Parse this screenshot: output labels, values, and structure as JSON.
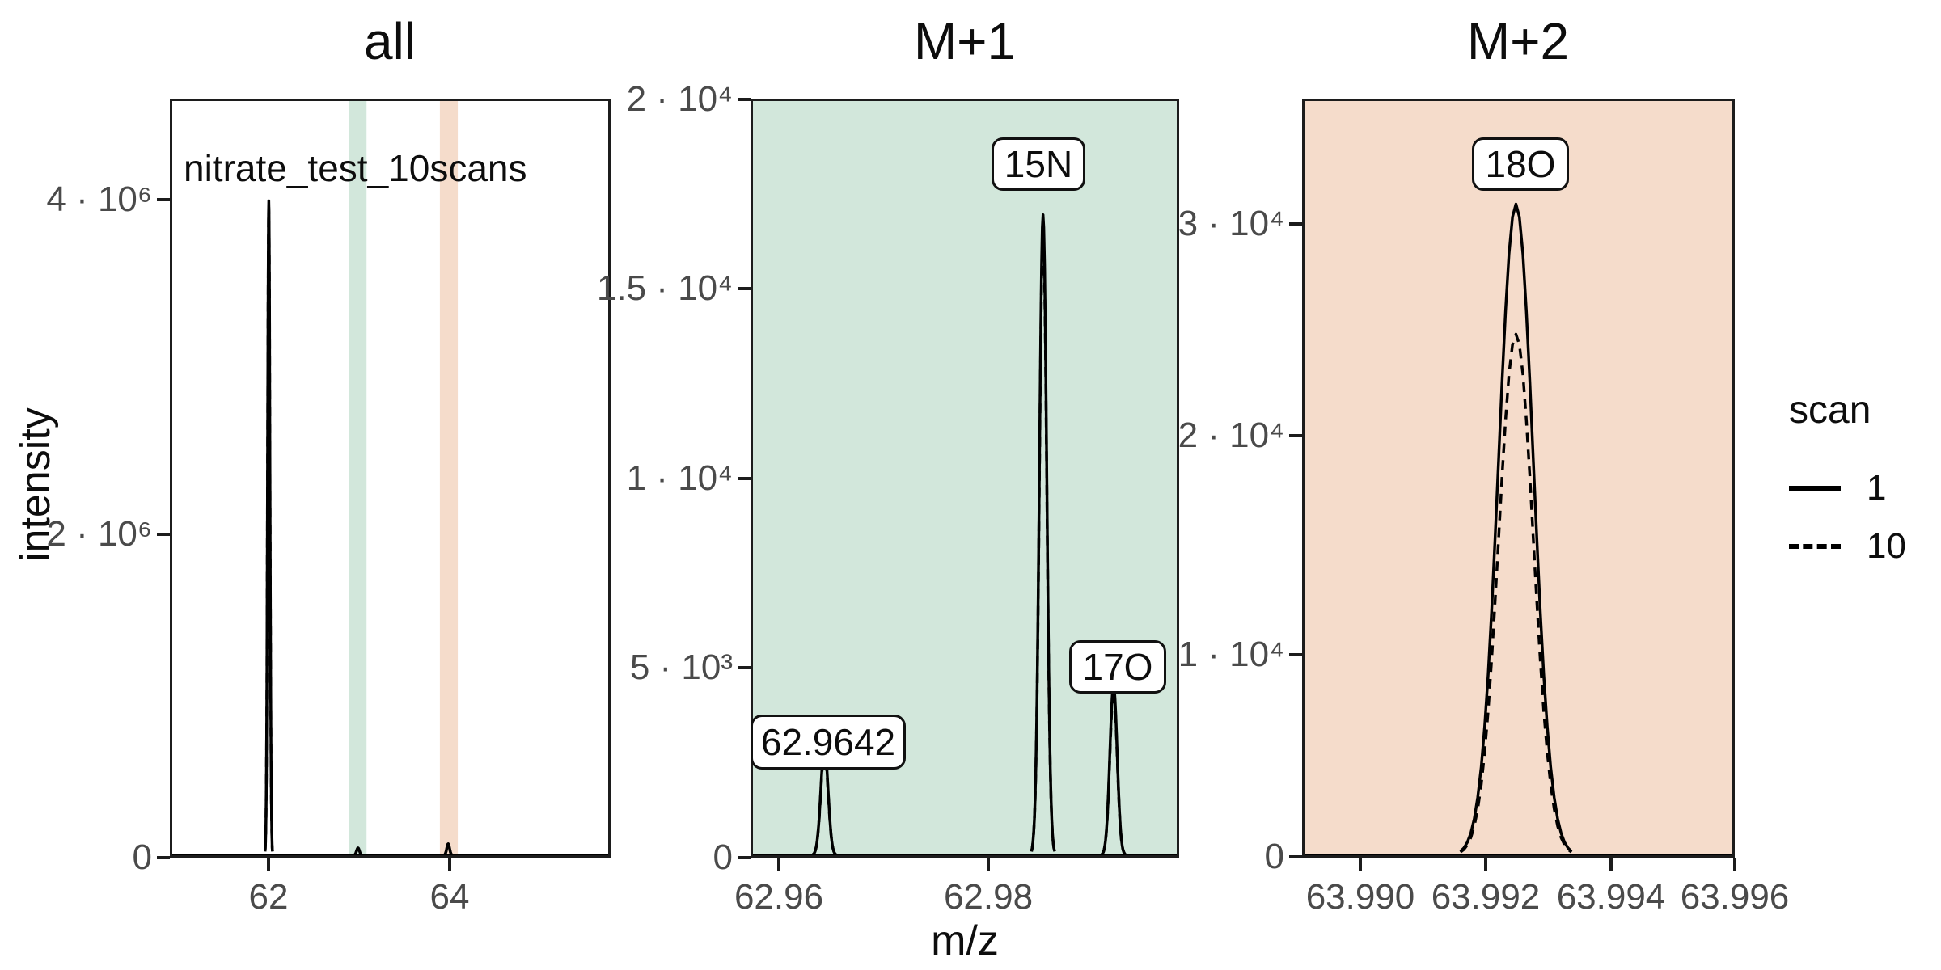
{
  "labels": {
    "x_axis": "m/z",
    "y_axis": "intensity"
  },
  "legend": {
    "title": "scan",
    "entries": [
      {
        "label": "1",
        "line_style": "solid"
      },
      {
        "label": "10",
        "line_style": "dashed"
      }
    ]
  },
  "chart_data": [
    {
      "type": "line",
      "title": "all",
      "annotation": "nitrate_test_10scans",
      "panel_fill": "#ffffff",
      "xlabel": "m/z",
      "ylabel": "intensity",
      "xlim": [
        60.91,
        65.78
      ],
      "ylim": [
        0,
        4610000
      ],
      "xticks": [
        {
          "value": 62,
          "label": "62"
        },
        {
          "value": 64,
          "label": "64"
        }
      ],
      "yticks": [
        {
          "value": 0,
          "label": "0"
        },
        {
          "value": 2000000,
          "label": "2 · 10⁶"
        },
        {
          "value": 4000000,
          "label": "4 · 10⁶"
        }
      ],
      "highlight_bands": [
        {
          "x0": 62.88,
          "x1": 63.08,
          "color": "#d2e7db",
          "meaning": "M+1 window"
        },
        {
          "x0": 63.9,
          "x1": 64.1,
          "color": "#f5dccb",
          "meaning": "M+2 window"
        }
      ],
      "peaks": [
        {
          "mz": 61.9884,
          "scan1": 4000000,
          "scan10": 3960000,
          "sd": 0.013
        },
        {
          "mz": 62.9853,
          "scan1": 45000,
          "scan10": 42000,
          "sd": 0.016
        },
        {
          "mz": 63.9925,
          "scan1": 70000,
          "scan10": 65000,
          "sd": 0.016
        }
      ]
    },
    {
      "type": "line",
      "title": "M+1",
      "panel_fill": "#d2e7db",
      "xlim": [
        62.9573,
        62.9982
      ],
      "ylim": [
        0,
        20020
      ],
      "xticks": [
        {
          "value": 62.96,
          "label": "62.96"
        },
        {
          "value": 62.98,
          "label": "62.98"
        }
      ],
      "yticks": [
        {
          "value": 0,
          "label": "0"
        },
        {
          "value": 5000,
          "label": "5 · 10³"
        },
        {
          "value": 10000,
          "label": "1 · 10⁴"
        },
        {
          "value": 15000,
          "label": "1.5 · 10⁴"
        },
        {
          "value": 20000,
          "label": "2 · 10⁴"
        }
      ],
      "highlight_bands": [],
      "peaks": [
        {
          "mz": 62.9642,
          "label": "62.9642",
          "scan1": 2900,
          "scan10": 2800,
          "sd": 0.00035
        },
        {
          "mz": 62.9853,
          "label": "15N",
          "scan1": 17000,
          "scan10": 16600,
          "sd": 0.00035
        },
        {
          "mz": 62.9921,
          "label": "17O",
          "scan1": 4500,
          "scan10": 4350,
          "sd": 0.00035
        }
      ]
    },
    {
      "type": "line",
      "title": "M+2",
      "panel_fill": "#f5dccb",
      "xlim": [
        63.9891,
        63.996
      ],
      "ylim": [
        0,
        35900
      ],
      "xticks": [
        {
          "value": 63.99,
          "label": "63.990"
        },
        {
          "value": 63.992,
          "label": "63.992"
        },
        {
          "value": 63.994,
          "label": "63.994"
        },
        {
          "value": 63.996,
          "label": "63.996"
        }
      ],
      "yticks": [
        {
          "value": 0,
          "label": "0"
        },
        {
          "value": 10000,
          "label": "1 · 10⁴"
        },
        {
          "value": 20000,
          "label": "2 · 10⁴"
        },
        {
          "value": 30000,
          "label": "3 · 10⁴"
        }
      ],
      "highlight_bands": [],
      "peaks": [
        {
          "mz": 63.99251,
          "label": "18O",
          "scan1": 31000,
          "scan10": 24800,
          "sd": 0.00028
        }
      ]
    }
  ]
}
